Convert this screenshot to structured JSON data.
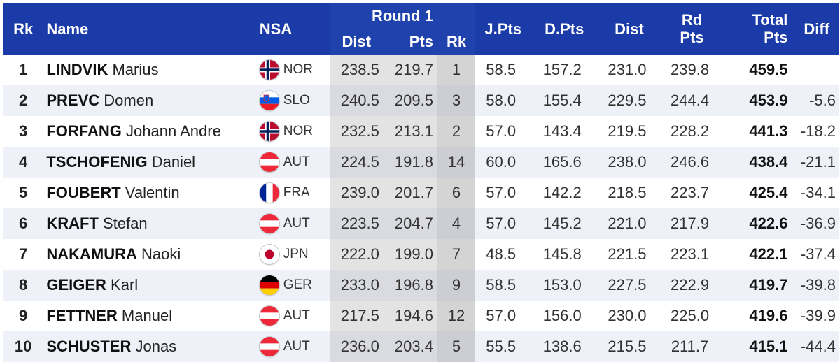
{
  "headers": {
    "rk": "Rk",
    "name": "Name",
    "nsa": "NSA",
    "round": "Round 1",
    "dist": "Dist",
    "pts": "Pts",
    "rrk": "Rk",
    "jpts": "J.Pts",
    "dpts": "D.Pts",
    "dist2": "Dist",
    "rd_pts_1": "Rd",
    "rd_pts_2": "Pts",
    "total_1": "Total",
    "total_2": "Pts",
    "diff": "Diff"
  },
  "rows": [
    {
      "rk": "1",
      "last": "LINDVIK",
      "first": "Marius",
      "flag": "norway-flag-icon",
      "nsa": "NOR",
      "dist": "238.5",
      "pts": "219.7",
      "rrk": "1",
      "jpts": "58.5",
      "dpts": "157.2",
      "dist2": "231.0",
      "rdpts": "239.8",
      "total": "459.5",
      "diff": ""
    },
    {
      "rk": "2",
      "last": "PREVC",
      "first": "Domen",
      "flag": "slovenia-flag-icon",
      "nsa": "SLO",
      "dist": "240.5",
      "pts": "209.5",
      "rrk": "3",
      "jpts": "58.0",
      "dpts": "155.4",
      "dist2": "229.5",
      "rdpts": "244.4",
      "total": "453.9",
      "diff": "-5.6"
    },
    {
      "rk": "3",
      "last": "FORFANG",
      "first": "Johann Andre",
      "flag": "norway-flag-icon",
      "nsa": "NOR",
      "dist": "232.5",
      "pts": "213.1",
      "rrk": "2",
      "jpts": "57.0",
      "dpts": "143.4",
      "dist2": "219.5",
      "rdpts": "228.2",
      "total": "441.3",
      "diff": "-18.2"
    },
    {
      "rk": "4",
      "last": "TSCHOFENIG",
      "first": "Daniel",
      "flag": "austria-flag-icon",
      "nsa": "AUT",
      "dist": "224.5",
      "pts": "191.8",
      "rrk": "14",
      "jpts": "60.0",
      "dpts": "165.6",
      "dist2": "238.0",
      "rdpts": "246.6",
      "total": "438.4",
      "diff": "-21.1"
    },
    {
      "rk": "5",
      "last": "FOUBERT",
      "first": "Valentin",
      "flag": "france-flag-icon",
      "nsa": "FRA",
      "dist": "239.0",
      "pts": "201.7",
      "rrk": "6",
      "jpts": "57.0",
      "dpts": "142.2",
      "dist2": "218.5",
      "rdpts": "223.7",
      "total": "425.4",
      "diff": "-34.1"
    },
    {
      "rk": "6",
      "last": "KRAFT",
      "first": "Stefan",
      "flag": "austria-flag-icon",
      "nsa": "AUT",
      "dist": "223.5",
      "pts": "204.7",
      "rrk": "4",
      "jpts": "57.0",
      "dpts": "145.2",
      "dist2": "221.0",
      "rdpts": "217.9",
      "total": "422.6",
      "diff": "-36.9"
    },
    {
      "rk": "7",
      "last": "NAKAMURA",
      "first": "Naoki",
      "flag": "japan-flag-icon",
      "nsa": "JPN",
      "dist": "222.0",
      "pts": "199.0",
      "rrk": "7",
      "jpts": "48.5",
      "dpts": "145.8",
      "dist2": "221.5",
      "rdpts": "223.1",
      "total": "422.1",
      "diff": "-37.4"
    },
    {
      "rk": "8",
      "last": "GEIGER",
      "first": "Karl",
      "flag": "germany-flag-icon",
      "nsa": "GER",
      "dist": "233.0",
      "pts": "196.8",
      "rrk": "9",
      "jpts": "58.5",
      "dpts": "153.0",
      "dist2": "227.5",
      "rdpts": "222.9",
      "total": "419.7",
      "diff": "-39.8"
    },
    {
      "rk": "9",
      "last": "FETTNER",
      "first": "Manuel",
      "flag": "austria-flag-icon",
      "nsa": "AUT",
      "dist": "217.5",
      "pts": "194.6",
      "rrk": "12",
      "jpts": "57.0",
      "dpts": "156.0",
      "dist2": "230.0",
      "rdpts": "225.0",
      "total": "419.6",
      "diff": "-39.9"
    },
    {
      "rk": "10",
      "last": "SCHUSTER",
      "first": "Jonas",
      "flag": "austria-flag-icon",
      "nsa": "AUT",
      "dist": "236.0",
      "pts": "203.4",
      "rrk": "5",
      "jpts": "55.5",
      "dpts": "138.6",
      "dist2": "215.5",
      "rdpts": "211.7",
      "total": "415.1",
      "diff": "-44.4"
    }
  ],
  "colors": {
    "header_bg": "#1a3ba8",
    "header_text": "#ffffff",
    "row_alt": "#eef1f8",
    "round_col_bg": "#e3e3e3",
    "round_rk_bg": "#d4d4d4"
  }
}
